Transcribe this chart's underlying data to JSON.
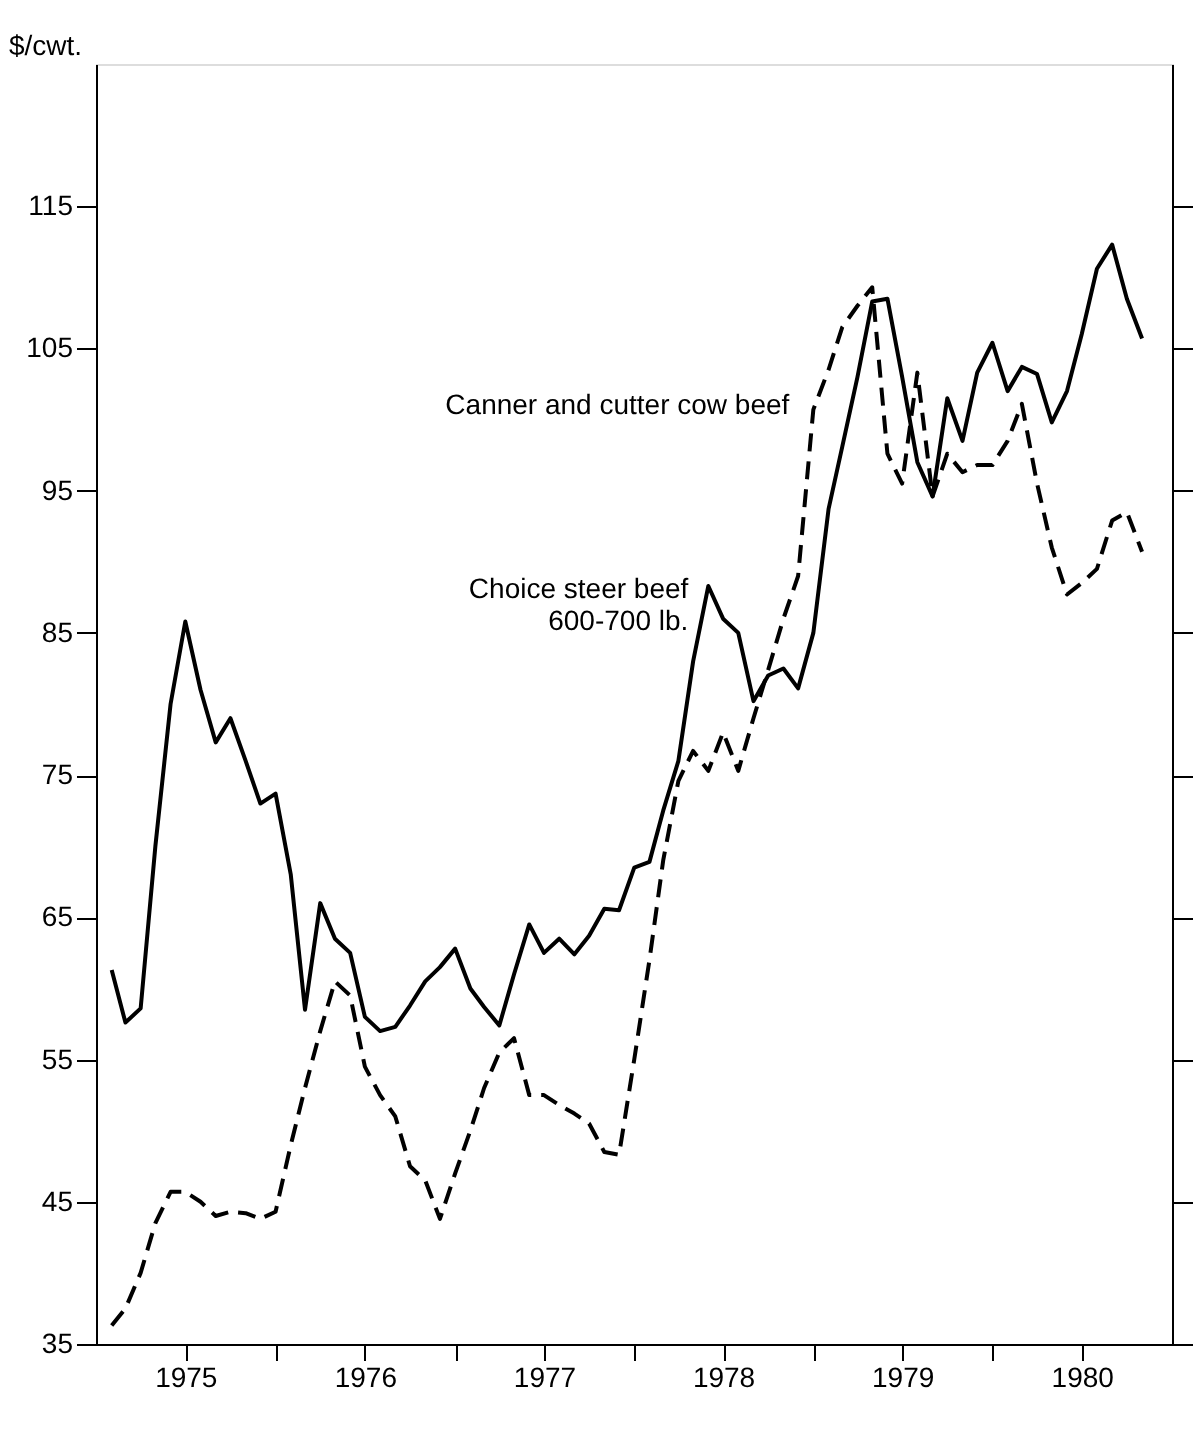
{
  "chart_data": {
    "type": "line",
    "ylabel": "$/cwt.",
    "x": [
      "1975-02",
      "1975-03",
      "1975-04",
      "1975-05",
      "1975-06",
      "1975-07",
      "1975-08",
      "1975-09",
      "1975-10",
      "1975-11",
      "1975-12",
      "1976-01",
      "1976-02",
      "1976-03",
      "1976-04",
      "1976-05",
      "1976-06",
      "1976-07",
      "1976-08",
      "1976-09",
      "1976-10",
      "1976-11",
      "1976-12",
      "1977-01",
      "1977-02",
      "1977-03",
      "1977-04",
      "1977-05",
      "1977-06",
      "1977-07",
      "1977-08",
      "1977-09",
      "1977-10",
      "1977-11",
      "1977-12",
      "1978-01",
      "1978-02",
      "1978-03",
      "1978-04",
      "1978-05",
      "1978-06",
      "1978-07",
      "1978-08",
      "1978-09",
      "1978-10",
      "1978-11",
      "1978-12",
      "1979-01",
      "1979-02",
      "1979-03",
      "1979-04",
      "1979-05",
      "1979-06",
      "1979-07",
      "1979-08",
      "1979-09",
      "1979-10",
      "1979-11",
      "1979-12",
      "1980-01",
      "1980-02",
      "1980-03",
      "1980-04",
      "1980-05",
      "1980-06",
      "1980-07",
      "1980-08",
      "1980-09",
      "1980-10",
      "1980-11"
    ],
    "series": [
      {
        "name": "Choice steer beef\n600-700 lb.",
        "color": "#000000",
        "line_style": "solid",
        "values": [
          61.3,
          57.6,
          58.6,
          70,
          80,
          85.8,
          81,
          77.3,
          79,
          76,
          73,
          73.7,
          68,
          58.5,
          66,
          63.5,
          62.5,
          58,
          57,
          57.3,
          58.8,
          60.5,
          61.5,
          62.8,
          60,
          58.7,
          57.4,
          61,
          64.5,
          62.5,
          63.5,
          62.4,
          63.7,
          65.6,
          65.5,
          68.5,
          68.9,
          72.5,
          76,
          83,
          88.3,
          86,
          85,
          80.2,
          82,
          82.5,
          81.1,
          85,
          93.7,
          98.1,
          103,
          108.3,
          108.5,
          103,
          97,
          94.6,
          101.5,
          98.5,
          103.3,
          105.4,
          102,
          103.7,
          103.2,
          99.8,
          102,
          106,
          110.6,
          112.3,
          108.5,
          105.7
        ]
      },
      {
        "name": "Canner and cutter cow beef",
        "color": "#000000",
        "line_style": "dashed",
        "values": [
          36.3,
          37.5,
          40,
          43.5,
          45.7,
          45.7,
          45,
          44,
          44.3,
          44.2,
          43.8,
          44.3,
          49,
          53,
          57,
          60.5,
          59.5,
          54.5,
          52.5,
          51,
          47.5,
          46.5,
          43.8,
          47,
          50,
          53,
          55.5,
          56.5,
          52.5,
          52.5,
          51.8,
          51.2,
          50.5,
          48.5,
          48.3,
          55,
          62,
          69,
          74.6,
          76.7,
          75.3,
          78,
          75.3,
          79,
          82.4,
          86,
          89,
          100.7,
          103.5,
          106.5,
          108,
          109.3,
          97.6,
          95.5,
          103.3,
          94.6,
          97.6,
          96.3,
          96.8,
          96.8,
          98.5,
          101.1,
          95.5,
          91,
          87.7,
          88.5,
          89.5,
          92.9,
          93.5,
          90.7
        ]
      }
    ],
    "xlim": [
      "1974-12-31",
      "1981-01-01"
    ],
    "xticks": [
      {
        "value": "1975-07",
        "label": "1975"
      },
      {
        "value": "1976-01",
        "label": null
      },
      {
        "value": "1976-07",
        "label": "1976"
      },
      {
        "value": "1977-01",
        "label": null
      },
      {
        "value": "1977-07",
        "label": "1977"
      },
      {
        "value": "1978-01",
        "label": null
      },
      {
        "value": "1978-07",
        "label": "1978"
      },
      {
        "value": "1979-01",
        "label": null
      },
      {
        "value": "1979-07",
        "label": "1979"
      },
      {
        "value": "1980-01",
        "label": null
      },
      {
        "value": "1980-07",
        "label": "1980"
      }
    ],
    "ylim": [
      35,
      125
    ],
    "yticks": [
      35,
      45,
      55,
      65,
      75,
      85,
      95,
      105,
      115
    ]
  }
}
